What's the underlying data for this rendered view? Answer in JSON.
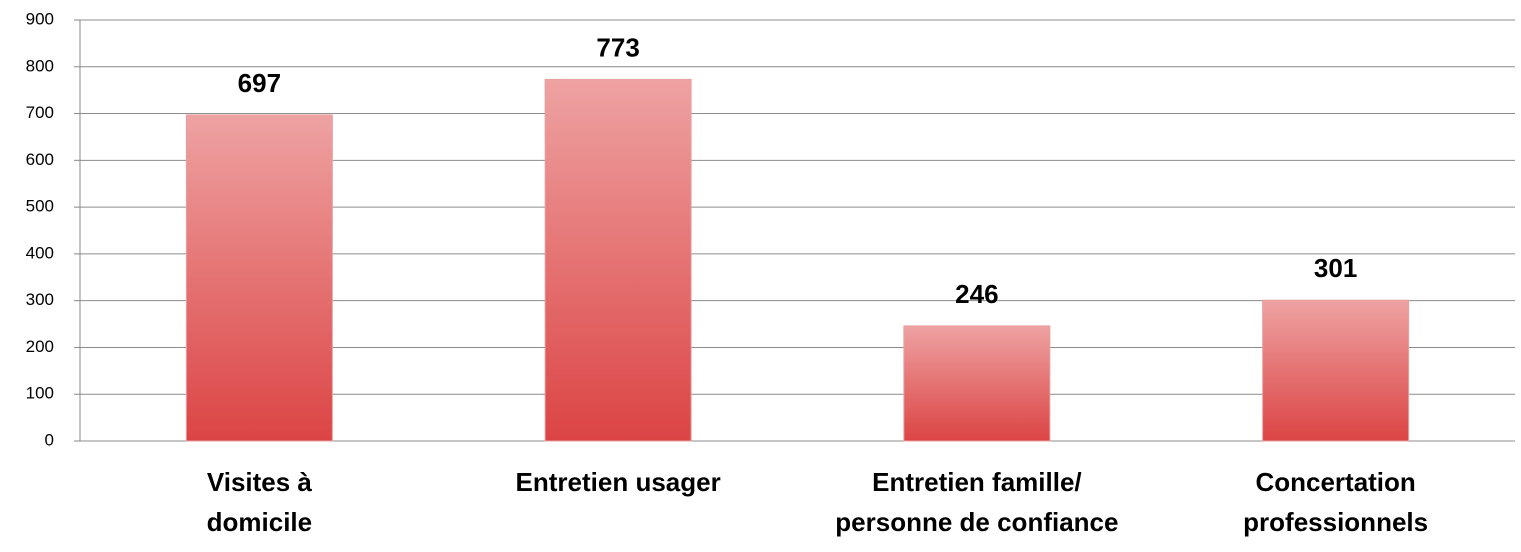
{
  "chart_data": {
    "type": "bar",
    "categories": [
      "Visites à domicile",
      "Entretien usager",
      "Entretien famille/ personne de confiance",
      "Concertation professionnels"
    ],
    "values": [
      697,
      773,
      246,
      301
    ],
    "color": "#dc4444",
    "ylim": [
      0,
      900
    ],
    "yticks": [
      0,
      100,
      200,
      300,
      400,
      500,
      600,
      700,
      800,
      900
    ],
    "grid": true
  }
}
